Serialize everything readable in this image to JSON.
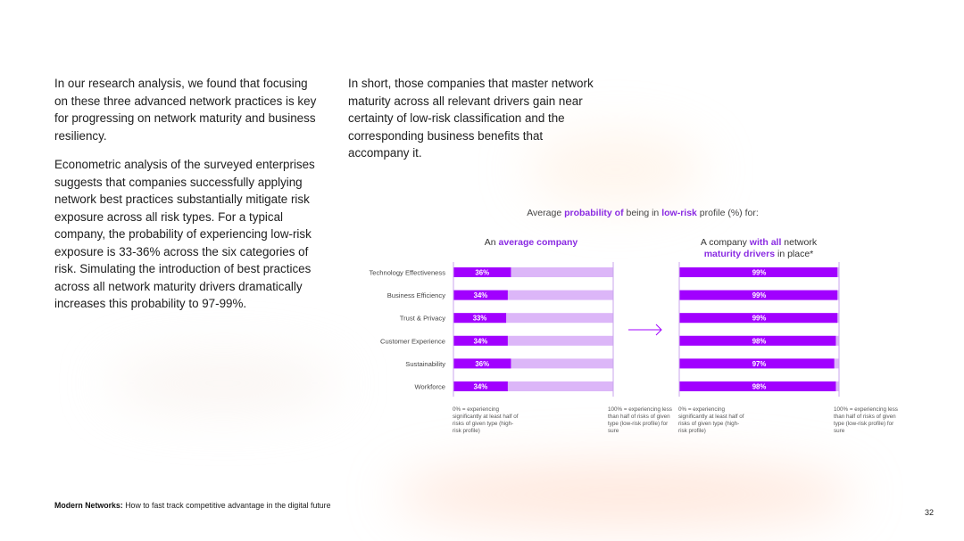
{
  "left_column": {
    "paragraph_1": "In our research analysis, we found that focusing on these three advanced network practices is key for progressing on network maturity and business resiliency.",
    "paragraph_2": "Econometric analysis of the surveyed enterprises suggests that companies successfully applying network best practices substantially mitigate risk exposure across all risk types. For a typical company, the probability of experiencing low-risk exposure is 33-36% across the six categories of risk. Simulating the introduction of best practices across all network maturity drivers dramatically increases this probability to 97-99%."
  },
  "middle_column": {
    "paragraph_1": "In short, those companies that master network maturity across all relevant drivers gain near certainty of low-risk classification and the corresponding business benefits that accompany it."
  },
  "chart_title": {
    "prefix": "Average ",
    "highlight_1": "probability of",
    "middle": " being in ",
    "highlight_2": "low-risk",
    "suffix": " profile (%) for:"
  },
  "chart_data": {
    "type": "bar",
    "orientation": "horizontal",
    "categories": [
      "Technology Effectiveness",
      "Business Efficiency",
      "Trust & Privacy",
      "Customer Experience",
      "Sustainability",
      "Workforce"
    ],
    "xlim": [
      0,
      100
    ],
    "series": [
      {
        "name": "An average company",
        "values": [
          36,
          34,
          33,
          34,
          36,
          34
        ],
        "labels": [
          "36%",
          "34%",
          "33%",
          "34%",
          "36%",
          "34%"
        ]
      },
      {
        "name": "A company with all network maturity drivers in place*",
        "values": [
          99,
          99,
          99,
          98,
          97,
          98
        ],
        "labels": [
          "99%",
          "99%",
          "99%",
          "98%",
          "97%",
          "98%"
        ]
      }
    ],
    "colors": {
      "fill": "#a100ff",
      "track": "#dcb6f8",
      "divider": "#c9a6ee",
      "label": "#ffffff"
    }
  },
  "panels": {
    "left": {
      "title_prefix": "An ",
      "title_highlight": "average company",
      "note_start": "0% = experiencing significantly at least half of risks of given type (high-risk profile)",
      "note_end": "100% = experiencing less than half of risks of given type (low-risk profile) for sure"
    },
    "right": {
      "title_prefix": "A company ",
      "title_highlight_1": "with all",
      "title_middle": " network",
      "title_highlight_2": "maturity drivers",
      "title_suffix": " in place*",
      "note_start": "0% = experiencing significantly at least half of risks of given type (high-risk profile)",
      "note_end": "100% = experiencing less than half of risks of given type (low-risk profile) for sure"
    }
  },
  "arrow_icon": "arrow-right-icon",
  "footer": {
    "bold": "Modern Networks:",
    "text": " How to fast track competitive advantage in the digital future"
  },
  "page_number": "32"
}
